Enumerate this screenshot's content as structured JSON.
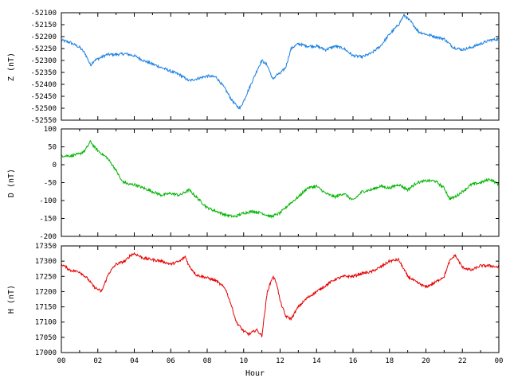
{
  "chart_data": {
    "type": "line",
    "xlabel": "Hour",
    "x_tick_labels": [
      "00",
      "02",
      "04",
      "06",
      "08",
      "10",
      "12",
      "14",
      "16",
      "18",
      "20",
      "22",
      "00"
    ],
    "x_range": [
      0,
      24
    ],
    "panels": [
      {
        "ylabel": "Z (nT)",
        "ylim": [
          -52550,
          -52100
        ],
        "yticks": [
          -52550,
          -52500,
          -52450,
          -52400,
          -52350,
          -52300,
          -52250,
          -52200,
          -52150,
          -52100
        ],
        "color": "#1a7fe0",
        "x": [
          0,
          0.5,
          1,
          1.3,
          1.6,
          1.8,
          2.1,
          2.5,
          3,
          3.5,
          4,
          4.5,
          5,
          5.5,
          6,
          6.5,
          7,
          7.5,
          8,
          8.5,
          9,
          9.3,
          9.6,
          9.8,
          10,
          10.4,
          10.8,
          11,
          11.3,
          11.6,
          11.8,
          12,
          12.3,
          12.6,
          13,
          13.5,
          14,
          14.5,
          15,
          15.5,
          16,
          16.5,
          17,
          17.5,
          18,
          18.5,
          18.8,
          19.2,
          19.6,
          20,
          20.5,
          21,
          21.5,
          22,
          22.5,
          23,
          23.5,
          24
        ],
        "y": [
          -52215,
          -52225,
          -52245,
          -52270,
          -52320,
          -52300,
          -52290,
          -52275,
          -52275,
          -52272,
          -52280,
          -52300,
          -52315,
          -52330,
          -52345,
          -52360,
          -52385,
          -52375,
          -52365,
          -52370,
          -52420,
          -52460,
          -52490,
          -52500,
          -52470,
          -52400,
          -52330,
          -52300,
          -52320,
          -52380,
          -52360,
          -52355,
          -52330,
          -52250,
          -52230,
          -52240,
          -52240,
          -52255,
          -52240,
          -52250,
          -52280,
          -52285,
          -52270,
          -52240,
          -52190,
          -52150,
          -52110,
          -52140,
          -52180,
          -52190,
          -52200,
          -52210,
          -52245,
          -52255,
          -52245,
          -52230,
          -52215,
          -52210
        ]
      },
      {
        "ylabel": "D (nT)",
        "ylim": [
          -200,
          100
        ],
        "yticks": [
          -200,
          -150,
          -100,
          -50,
          0,
          50,
          100
        ],
        "color": "#00b400",
        "x": [
          0,
          0.5,
          1,
          1.3,
          1.6,
          1.8,
          2.1,
          2.5,
          3,
          3.3,
          3.7,
          4,
          4.5,
          5,
          5.5,
          6,
          6.5,
          7,
          7.3,
          7.7,
          8,
          8.5,
          9,
          9.5,
          10,
          10.5,
          11,
          11.5,
          12,
          12.5,
          13,
          13.5,
          14,
          14.5,
          15,
          15.5,
          16,
          16.5,
          17,
          17.5,
          18,
          18.5,
          19,
          19.5,
          20,
          20.5,
          21,
          21.3,
          21.6,
          22,
          22.5,
          23,
          23.5,
          24
        ],
        "y": [
          25,
          25,
          30,
          40,
          65,
          50,
          35,
          20,
          -15,
          -45,
          -55,
          -55,
          -65,
          -75,
          -85,
          -80,
          -85,
          -70,
          -85,
          -105,
          -120,
          -130,
          -140,
          -145,
          -135,
          -130,
          -135,
          -145,
          -135,
          -110,
          -90,
          -65,
          -60,
          -80,
          -90,
          -80,
          -100,
          -75,
          -70,
          -60,
          -65,
          -55,
          -70,
          -50,
          -45,
          -45,
          -65,
          -95,
          -90,
          -75,
          -55,
          -50,
          -40,
          -55
        ]
      },
      {
        "ylabel": "H (nT)",
        "ylim": [
          17000,
          17350
        ],
        "yticks": [
          17000,
          17050,
          17100,
          17150,
          17200,
          17250,
          17300,
          17350
        ],
        "color": "#e60000",
        "x": [
          0,
          0.5,
          1,
          1.4,
          1.8,
          2.2,
          2.6,
          3,
          3.5,
          3.8,
          4,
          4.5,
          5,
          5.5,
          6,
          6.5,
          6.8,
          7,
          7.4,
          8,
          8.5,
          9,
          9.3,
          9.6,
          10,
          10.3,
          10.7,
          11,
          11.3,
          11.6,
          11.8,
          12,
          12.3,
          12.6,
          13,
          13.5,
          14,
          14.5,
          15,
          15.5,
          16,
          16.5,
          17,
          17.5,
          18,
          18.5,
          19,
          19.5,
          20,
          20.5,
          21,
          21.3,
          21.6,
          22,
          22.5,
          23,
          23.5,
          24
        ],
        "y": [
          17290,
          17270,
          17265,
          17245,
          17215,
          17200,
          17260,
          17290,
          17300,
          17320,
          17325,
          17310,
          17305,
          17300,
          17290,
          17300,
          17315,
          17285,
          17255,
          17245,
          17235,
          17210,
          17160,
          17100,
          17070,
          17060,
          17075,
          17055,
          17200,
          17250,
          17230,
          17170,
          17120,
          17110,
          17150,
          17180,
          17200,
          17220,
          17240,
          17250,
          17250,
          17260,
          17265,
          17280,
          17300,
          17305,
          17250,
          17230,
          17215,
          17230,
          17250,
          17300,
          17320,
          17280,
          17270,
          17285,
          17285,
          17280
        ]
      }
    ]
  }
}
